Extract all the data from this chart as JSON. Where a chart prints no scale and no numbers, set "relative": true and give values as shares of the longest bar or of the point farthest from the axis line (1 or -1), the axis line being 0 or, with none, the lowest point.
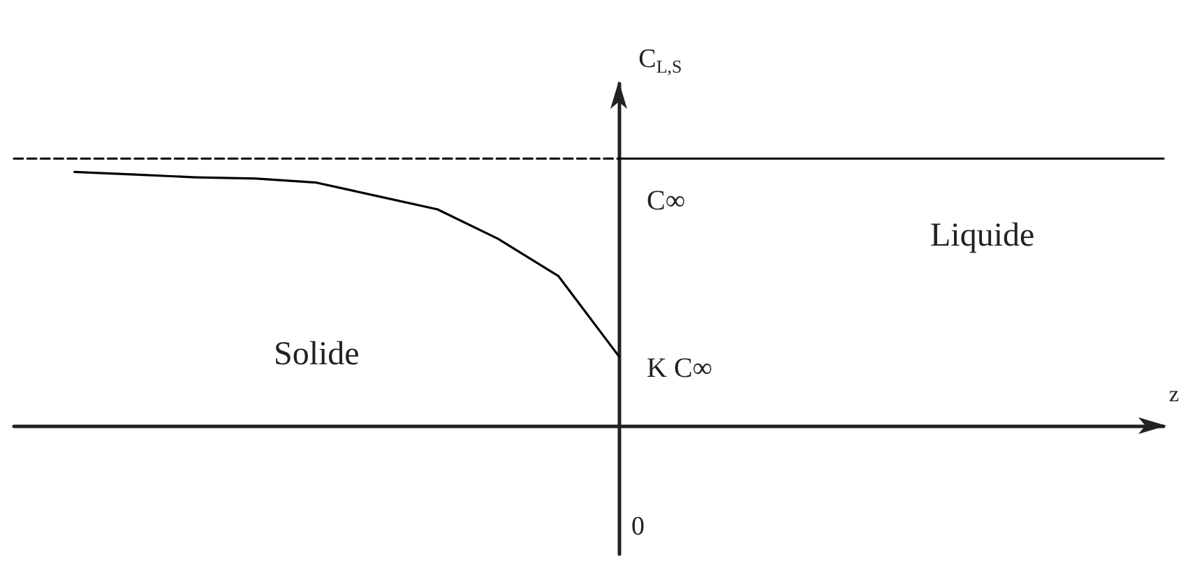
{
  "chart_data": {
    "type": "line",
    "relative": true,
    "xlabel": "z",
    "ylabel": "C$_{L,S}$",
    "categories": [
      null,
      null,
      null,
      null,
      null,
      null,
      null,
      null,
      null,
      null,
      null,
      null,
      null,
      null,
      null,
      null,
      null,
      null,
      null,
      null
    ],
    "series": [
      {
        "values": [
          1,
          1,
          1,
          1,
          1,
          1,
          1,
          1,
          1,
          1,
          1,
          null,
          null,
          null,
          null,
          null,
          null,
          null,
          null,
          null
        ],
        "color": "#000000",
        "line_style": "dashed"
      },
      {
        "values": [
          null,
          null,
          null,
          null,
          null,
          null,
          null,
          null,
          null,
          null,
          1,
          1,
          1,
          1,
          1,
          1,
          1,
          1,
          1,
          1
        ],
        "color": "#000000",
        "line_style": "solid"
      },
      {
        "values": [
          null,
          0.95,
          0.94,
          0.93,
          0.925,
          0.91,
          0.86,
          0.81,
          0.7,
          0.56,
          0.26,
          null,
          null,
          null,
          null,
          null,
          null,
          null,
          null,
          null
        ],
        "color": "#000000",
        "line_style": "solid"
      }
    ],
    "annotations": [
      "C∞",
      "K C∞",
      "Solide",
      "Liquide",
      "0"
    ],
    "marker": "none"
  }
}
